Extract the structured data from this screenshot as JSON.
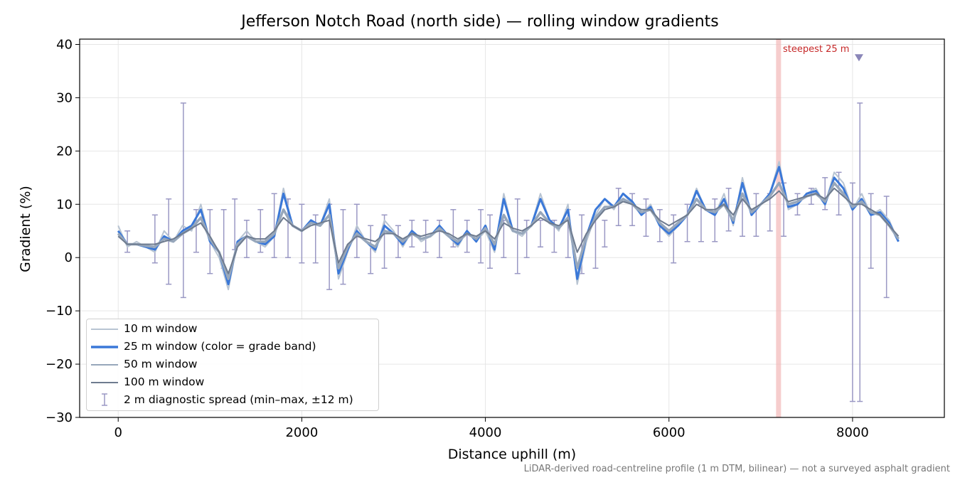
{
  "chart_data": {
    "type": "line",
    "title": "Jefferson Notch Road (north side) — rolling window gradients",
    "xlabel": "Distance uphill (m)",
    "ylabel": "Gradient (%)",
    "xlim": [
      -420,
      9000
    ],
    "ylim": [
      -30,
      41
    ],
    "xticks": [
      0,
      2000,
      4000,
      6000,
      8000
    ],
    "yticks": [
      -30,
      -20,
      -10,
      0,
      10,
      20,
      30,
      40
    ],
    "xtick_labels": [
      "0",
      "2000",
      "4000",
      "6000",
      "8000"
    ],
    "ytick_labels": [
      "−30",
      "−20",
      "−10",
      "0",
      "10",
      "20",
      "30",
      "40"
    ],
    "grid": true,
    "legend_position": "lower-left",
    "footnote": "LiDAR-derived road-centreline profile (1 m DTM, bilinear) — not a surveyed asphalt gradient",
    "annotation": {
      "label": "steepest 25 m",
      "x": 7190,
      "marker_x": 8070,
      "marker_y": 37.5
    },
    "colors": {
      "w10": "#b8c4d2",
      "w25": "#3a78d8",
      "w50": "#97a7bb",
      "w100": "#6e7b8f",
      "spread": "#9a98c4",
      "highlight": "#f2b8b8"
    },
    "series": [
      {
        "name": "10 m window",
        "x": [
          0,
          100,
          200,
          300,
          400,
          500,
          600,
          700,
          800,
          900,
          1000,
          1100,
          1200,
          1300,
          1400,
          1500,
          1600,
          1700,
          1800,
          1900,
          2000,
          2100,
          2200,
          2300,
          2400,
          2500,
          2600,
          2700,
          2800,
          2900,
          3000,
          3100,
          3200,
          3300,
          3400,
          3500,
          3600,
          3700,
          3800,
          3900,
          4000,
          4100,
          4200,
          4300,
          4400,
          4500,
          4600,
          4700,
          4800,
          4900,
          5000,
          5100,
          5200,
          5300,
          5400,
          5500,
          5600,
          5700,
          5800,
          5900,
          6000,
          6100,
          6200,
          6300,
          6400,
          6500,
          6600,
          6700,
          6800,
          6900,
          7000,
          7100,
          7200,
          7300,
          7400,
          7500,
          7600,
          7700,
          7800,
          7900,
          8000,
          8100,
          8200,
          8300,
          8400,
          8500
        ],
        "y": [
          6,
          2,
          3,
          2,
          1,
          5,
          3,
          6,
          5,
          10,
          3,
          0,
          -6,
          3,
          5,
          3,
          2,
          4,
          13,
          6,
          5,
          7,
          6,
          11,
          -4,
          1,
          6,
          3,
          1,
          7,
          5,
          2,
          5,
          3,
          4,
          6,
          4,
          2,
          5,
          3,
          5,
          1,
          12,
          5,
          4,
          6,
          12,
          7,
          5,
          10,
          -5,
          3,
          8,
          11,
          9,
          12,
          10,
          8,
          10,
          6,
          4,
          6,
          8,
          13,
          9,
          8,
          12,
          6,
          15,
          8,
          10,
          12,
          18,
          9,
          10,
          12,
          13,
          10,
          16,
          14,
          9,
          12,
          8,
          9,
          7,
          3
        ]
      },
      {
        "name": "25 m window (color = grade band)",
        "x": [
          0,
          100,
          200,
          300,
          400,
          500,
          600,
          700,
          800,
          900,
          1000,
          1100,
          1200,
          1300,
          1400,
          1500,
          1600,
          1700,
          1800,
          1900,
          2000,
          2100,
          2200,
          2300,
          2400,
          2500,
          2600,
          2700,
          2800,
          2900,
          3000,
          3100,
          3200,
          3300,
          3400,
          3500,
          3600,
          3700,
          3800,
          3900,
          4000,
          4100,
          4200,
          4300,
          4400,
          4500,
          4600,
          4700,
          4800,
          4900,
          5000,
          5100,
          5200,
          5300,
          5400,
          5500,
          5600,
          5700,
          5800,
          5900,
          6000,
          6100,
          6200,
          6300,
          6400,
          6500,
          6600,
          6700,
          6800,
          6900,
          7000,
          7100,
          7200,
          7300,
          7400,
          7500,
          7600,
          7700,
          7800,
          7900,
          8000,
          8100,
          8200,
          8300,
          8400,
          8500
        ],
        "y": [
          5,
          2.5,
          2.5,
          2,
          1.5,
          4,
          3,
          5,
          6,
          9,
          3,
          1,
          -5,
          3,
          4,
          3,
          2.5,
          4,
          12,
          6,
          5,
          7,
          6,
          10,
          -3,
          1.5,
          5,
          3,
          1.5,
          6,
          4.5,
          2.5,
          5,
          3.5,
          4,
          6,
          4,
          2.5,
          5,
          3,
          6,
          1.5,
          11,
          5,
          4.5,
          6,
          11,
          7,
          5.5,
          9,
          -4,
          4,
          9,
          11,
          9.5,
          12,
          10.5,
          8,
          9.5,
          6,
          4.5,
          6,
          8,
          12.5,
          9,
          8,
          11,
          6.5,
          14,
          8,
          10,
          12,
          17,
          9.5,
          10,
          12,
          12.5,
          10,
          15,
          13,
          9,
          11,
          8,
          8.5,
          6.5,
          3
        ]
      },
      {
        "name": "50 m window",
        "x": [
          0,
          100,
          200,
          300,
          400,
          500,
          600,
          700,
          800,
          900,
          1000,
          1100,
          1200,
          1300,
          1400,
          1500,
          1600,
          1700,
          1800,
          1900,
          2000,
          2100,
          2200,
          2300,
          2400,
          2500,
          2600,
          2700,
          2800,
          2900,
          3000,
          3100,
          3200,
          3300,
          3400,
          3500,
          3600,
          3700,
          3800,
          3900,
          4000,
          4100,
          4200,
          4300,
          4400,
          4500,
          4600,
          4700,
          4800,
          4900,
          5000,
          5100,
          5200,
          5300,
          5400,
          5500,
          5600,
          5700,
          5800,
          5900,
          6000,
          6100,
          6200,
          6300,
          6400,
          6500,
          6600,
          6700,
          6800,
          6900,
          7000,
          7100,
          7200,
          7300,
          7400,
          7500,
          7600,
          7700,
          7800,
          7900,
          8000,
          8100,
          8200,
          8300,
          8400,
          8500
        ],
        "y": [
          4.5,
          2.5,
          2.5,
          2.2,
          2,
          3.5,
          3,
          4.5,
          5.5,
          7.5,
          3.5,
          1,
          -4,
          2.5,
          4,
          3,
          3,
          4.5,
          9,
          6,
          5,
          6.5,
          6,
          8,
          -2,
          2,
          4.5,
          3,
          2,
          5,
          4.5,
          3,
          4.5,
          3.5,
          4,
          5.5,
          4,
          3,
          4.5,
          3.5,
          5.5,
          2.5,
          8,
          5,
          4.5,
          6,
          8.5,
          6.5,
          5.5,
          7.5,
          -2,
          4,
          7.5,
          9.5,
          9.5,
          11,
          10,
          8.5,
          9,
          6.5,
          5,
          6.5,
          8,
          11,
          9,
          8.5,
          10,
          7,
          12,
          8.5,
          10,
          11.5,
          14,
          10,
          10.5,
          11.5,
          12,
          10.5,
          14,
          12,
          9.5,
          10.5,
          8.5,
          8,
          6,
          3.5
        ]
      },
      {
        "name": "100 m window",
        "x": [
          0,
          100,
          200,
          300,
          400,
          500,
          600,
          700,
          800,
          900,
          1000,
          1100,
          1200,
          1300,
          1400,
          1500,
          1600,
          1700,
          1800,
          1900,
          2000,
          2100,
          2200,
          2300,
          2400,
          2500,
          2600,
          2700,
          2800,
          2900,
          3000,
          3100,
          3200,
          3300,
          3400,
          3500,
          3600,
          3700,
          3800,
          3900,
          4000,
          4100,
          4200,
          4300,
          4400,
          4500,
          4600,
          4700,
          4800,
          4900,
          5000,
          5100,
          5200,
          5300,
          5400,
          5500,
          5600,
          5700,
          5800,
          5900,
          6000,
          6100,
          6200,
          6300,
          6400,
          6500,
          6600,
          6700,
          6800,
          6900,
          7000,
          7100,
          7200,
          7300,
          7400,
          7500,
          7600,
          7700,
          7800,
          7900,
          8000,
          8100,
          8200,
          8300,
          8400,
          8500
        ],
        "y": [
          4,
          2.5,
          2.5,
          2.5,
          2.5,
          3,
          3.5,
          4.5,
          5.5,
          6.5,
          4,
          1,
          -3,
          2,
          4,
          3.5,
          3.5,
          5,
          7.5,
          6,
          5,
          6,
          6.5,
          7,
          -1,
          2.5,
          4,
          3.5,
          3,
          4.5,
          4.5,
          3.5,
          4.5,
          4,
          4.5,
          5,
          4.5,
          3.5,
          4.5,
          4,
          5,
          3.5,
          6.5,
          5.5,
          5,
          6,
          7.5,
          6.5,
          6,
          7,
          1,
          4.5,
          7,
          9,
          9.5,
          10.5,
          10,
          9,
          9,
          7,
          6,
          7,
          8,
          10,
          9,
          9,
          10,
          8,
          11,
          9,
          10,
          11,
          12.5,
          10.5,
          11,
          11.5,
          12,
          11,
          13,
          11.5,
          10,
          10,
          9,
          8,
          6,
          4
        ]
      },
      {
        "name": "2 m diagnostic spread (min–max, ±12 m)",
        "type": "errorbar",
        "x": [
          100,
          400,
          550,
          710,
          850,
          1000,
          1150,
          1270,
          1400,
          1550,
          1700,
          1850,
          2000,
          2150,
          2300,
          2450,
          2600,
          2750,
          2900,
          3050,
          3200,
          3350,
          3500,
          3650,
          3800,
          3950,
          4050,
          4200,
          4350,
          4450,
          4600,
          4750,
          4900,
          5050,
          5200,
          5300,
          5450,
          5600,
          5750,
          5900,
          6050,
          6200,
          6350,
          6500,
          6650,
          6800,
          6950,
          7100,
          7250,
          7400,
          7550,
          7700,
          7850,
          8000,
          8080,
          8200,
          8370
        ],
        "low": [
          1,
          -1,
          -5,
          -7.5,
          1,
          -3,
          -2,
          1.5,
          0,
          1,
          0,
          0,
          -1,
          -1,
          -6,
          -5,
          0,
          -3,
          -2,
          0,
          2,
          1,
          0,
          2,
          1,
          -1,
          -2,
          0,
          -3,
          0,
          2,
          1,
          0,
          -3,
          -2,
          2,
          6,
          6,
          4,
          3,
          -1,
          3,
          3,
          3,
          5,
          4,
          4,
          5,
          4,
          8,
          10,
          9,
          8,
          -27,
          -27,
          -2,
          -7.5
        ],
        "high": [
          5,
          8,
          11,
          29,
          9,
          9,
          9,
          11,
          7,
          9,
          12,
          11,
          10,
          8,
          10,
          9,
          10,
          6,
          8,
          6,
          7,
          7,
          7,
          9,
          7,
          9,
          8,
          7,
          11,
          7,
          7,
          7,
          9,
          8,
          8,
          7,
          13,
          12,
          11,
          9,
          8,
          10,
          10,
          11,
          13,
          11,
          12,
          12,
          14,
          12,
          13,
          15,
          16,
          14,
          29,
          12,
          11.5
        ]
      }
    ]
  }
}
